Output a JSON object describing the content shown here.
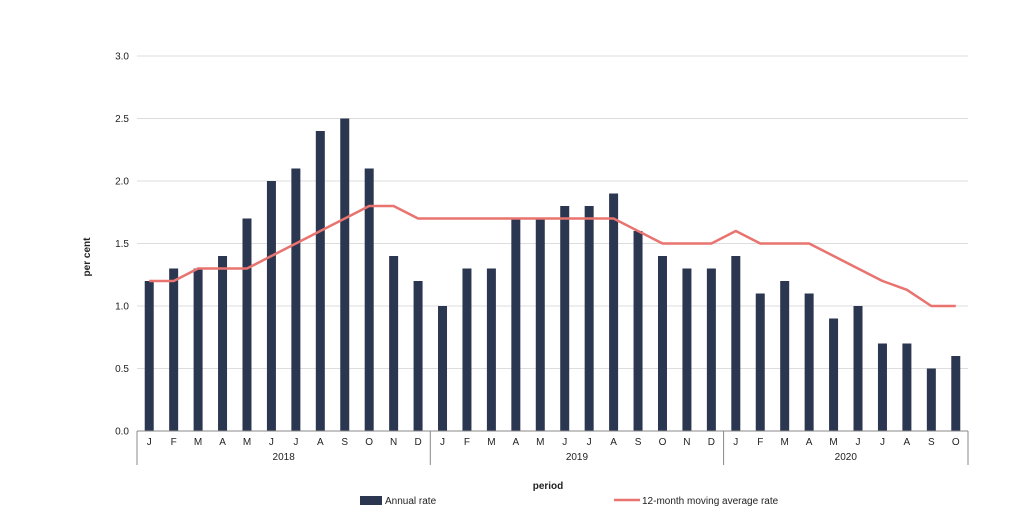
{
  "chart_data": {
    "type": "bar",
    "title": "",
    "xlabel": "period",
    "ylabel": "per cent",
    "ylim": [
      0,
      3.0
    ],
    "yticks": [
      "0.0",
      "0.5",
      "1.0",
      "1.5",
      "2.0",
      "2.5",
      "3.0"
    ],
    "grid": true,
    "legend_position": "bottom",
    "categories": [
      "J",
      "F",
      "M",
      "A",
      "M",
      "J",
      "J",
      "A",
      "S",
      "O",
      "N",
      "D",
      "J",
      "F",
      "M",
      "A",
      "M",
      "J",
      "J",
      "A",
      "S",
      "O",
      "N",
      "D",
      "J",
      "F",
      "M",
      "A",
      "M",
      "J",
      "J",
      "A",
      "S",
      "O"
    ],
    "groups": [
      {
        "label": "2018",
        "count": 12
      },
      {
        "label": "2019",
        "count": 12
      },
      {
        "label": "2020",
        "count": 10
      }
    ],
    "series": [
      {
        "name": "Annual rate",
        "type": "bar",
        "color": "#2b3650",
        "values": [
          1.2,
          1.3,
          1.3,
          1.4,
          1.7,
          2.0,
          2.1,
          2.4,
          2.5,
          2.1,
          1.4,
          1.2,
          1.0,
          1.3,
          1.3,
          1.7,
          1.7,
          1.8,
          1.8,
          1.9,
          1.6,
          1.4,
          1.3,
          1.3,
          1.4,
          1.1,
          1.2,
          1.1,
          0.9,
          1.0,
          0.7,
          0.7,
          0.5,
          0.6
        ]
      },
      {
        "name": "12-month moving average rate",
        "type": "line",
        "color": "#e8736f",
        "values": [
          1.2,
          1.2,
          1.3,
          1.3,
          1.3,
          1.4,
          1.5,
          1.6,
          1.7,
          1.8,
          1.8,
          1.7,
          1.7,
          1.7,
          1.7,
          1.7,
          1.7,
          1.7,
          1.7,
          1.7,
          1.6,
          1.5,
          1.5,
          1.5,
          1.6,
          1.5,
          1.5,
          1.5,
          1.4,
          1.3,
          1.2,
          1.13,
          1.0,
          1.0
        ]
      }
    ]
  }
}
